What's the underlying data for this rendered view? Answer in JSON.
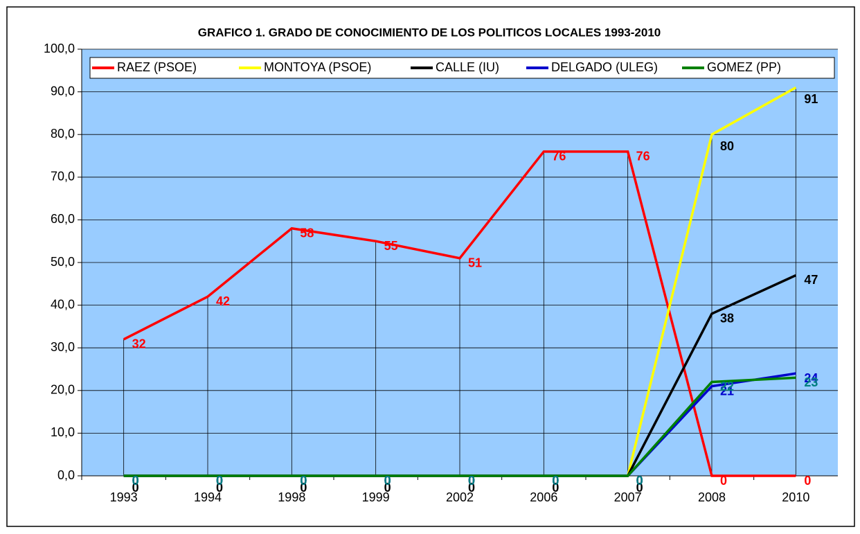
{
  "chart_data": {
    "type": "line",
    "title": "GRAFICO 1. GRADO DE CONOCIMIENTO DE LOS POLITICOS LOCALES 1993-2010",
    "categories": [
      "1993",
      "1994",
      "1998",
      "1999",
      "2002",
      "2006",
      "2007",
      "2008",
      "2010"
    ],
    "series": [
      {
        "name": "RAEZ (PSOE)",
        "color": "#ff0000",
        "label_color": "#ff0000",
        "values": [
          32,
          42,
          58,
          55,
          51,
          76,
          76,
          0,
          0
        ]
      },
      {
        "name": "MONTOYA (PSOE)",
        "color": "#ffff00",
        "label_color": "#000000",
        "values": [
          0,
          0,
          0,
          0,
          0,
          0,
          0,
          80,
          91
        ]
      },
      {
        "name": "CALLE (IU)",
        "color": "#000000",
        "label_color": "#000000",
        "values": [
          0,
          0,
          0,
          0,
          0,
          0,
          0,
          38,
          47
        ]
      },
      {
        "name": "DELGADO (ULEG)",
        "color": "#0000cc",
        "label_color": "#0000cc",
        "values": [
          0,
          0,
          0,
          0,
          0,
          0,
          0,
          21,
          24
        ]
      },
      {
        "name": "GOMEZ (PP)",
        "color": "#008000",
        "label_color": "#008080",
        "values": [
          0,
          0,
          0,
          0,
          0,
          0,
          0,
          22,
          23
        ]
      }
    ],
    "ylim": [
      0,
      100
    ],
    "yticks": [
      {
        "value": 0,
        "label": "0,0"
      },
      {
        "value": 10,
        "label": "10,0"
      },
      {
        "value": 20,
        "label": "20,0"
      },
      {
        "value": 30,
        "label": "30,0"
      },
      {
        "value": 40,
        "label": "40,0"
      },
      {
        "value": 50,
        "label": "50,0"
      },
      {
        "value": 60,
        "label": "60,0"
      },
      {
        "value": 70,
        "label": "70,0"
      },
      {
        "value": 80,
        "label": "80,0"
      },
      {
        "value": 90,
        "label": "90,0"
      },
      {
        "value": 100,
        "label": "100,0"
      }
    ],
    "grid": true,
    "legend": "top",
    "background": "#99ccff"
  }
}
